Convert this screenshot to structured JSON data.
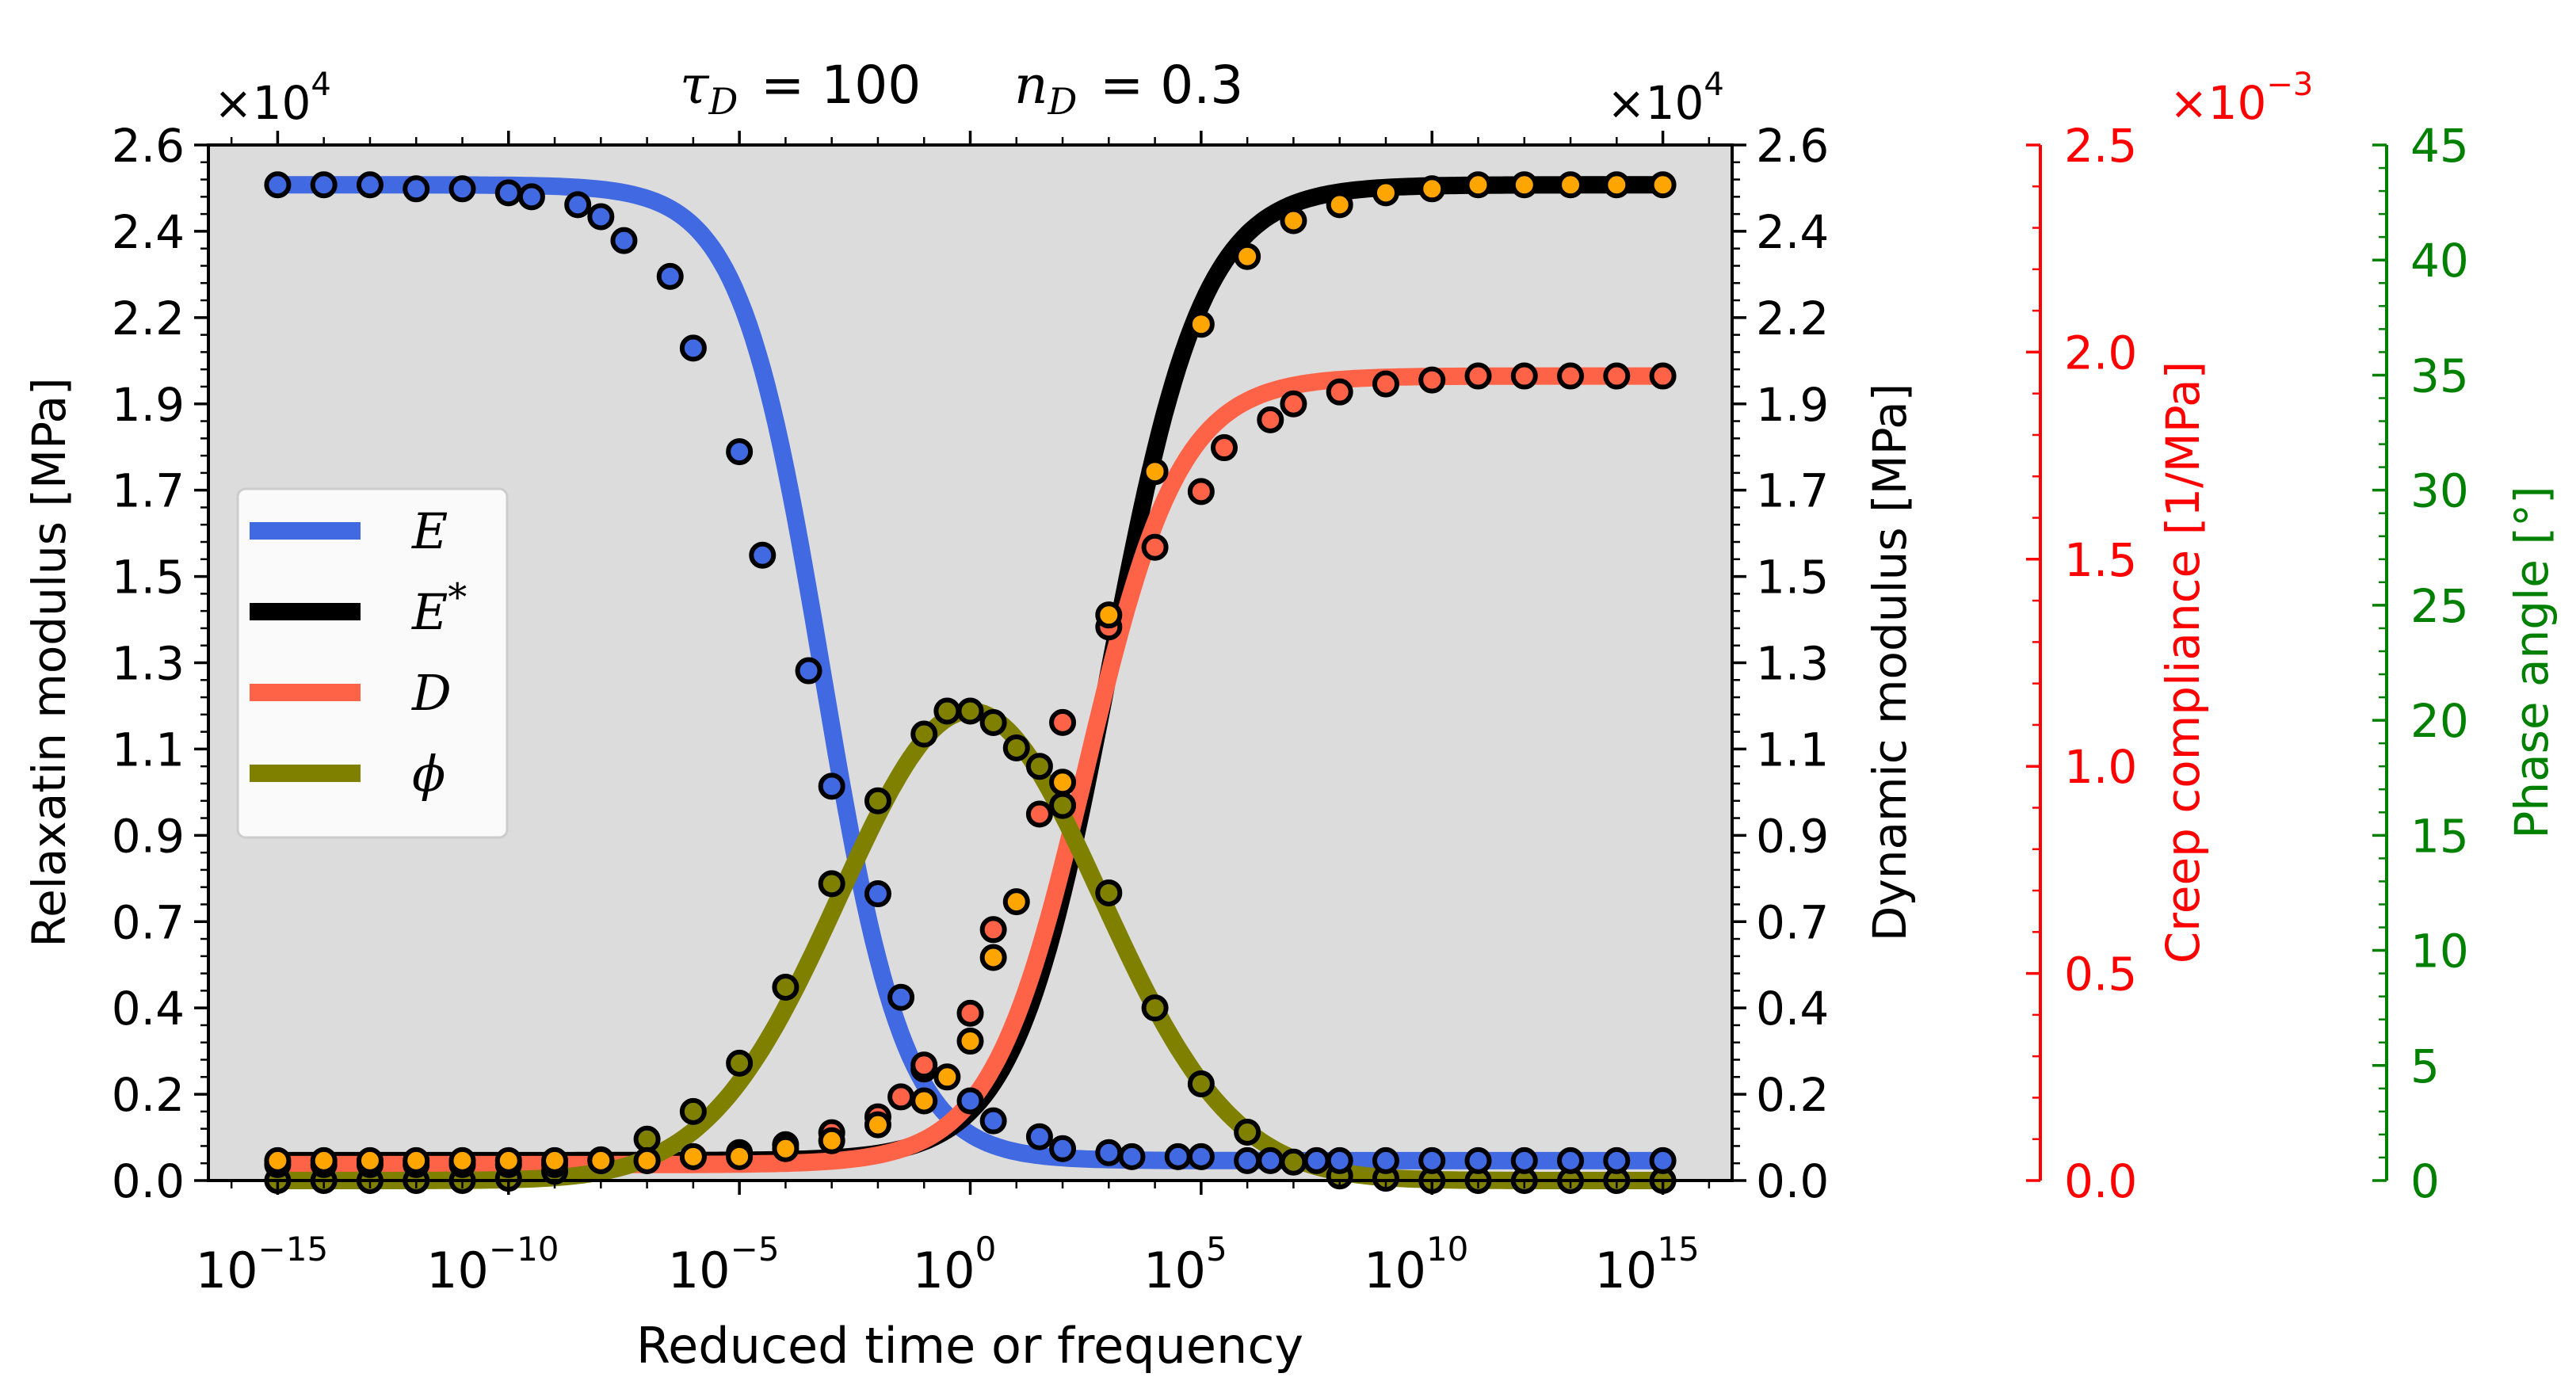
{
  "chart_data": {
    "type": "line",
    "title": "τ_D = 100    n_D = 0.3",
    "title_parts": {
      "tau_symbol": "τ",
      "tau_sub": "D",
      "tau_value": "= 100",
      "n_symbol": "n",
      "n_sub": "D",
      "n_value": "= 0.3"
    },
    "xlabel": "Reduced time or frequency",
    "x_scale": "log",
    "x_ticks": [
      {
        "exp": -15,
        "base": "10",
        "sup": "−15"
      },
      {
        "exp": -10,
        "base": "10",
        "sup": "−10"
      },
      {
        "exp": -5,
        "base": "10",
        "sup": "−5"
      },
      {
        "exp": 0,
        "base": "10",
        "sup": "0"
      },
      {
        "exp": 5,
        "base": "10",
        "sup": "5"
      },
      {
        "exp": 10,
        "base": "10",
        "sup": "10"
      },
      {
        "exp": 15,
        "base": "10",
        "sup": "15"
      }
    ],
    "xlim_exp": [
      -16.5,
      16.5
    ],
    "axes": {
      "left": {
        "label": "Relaxatin modulus [MPa]",
        "ylim": [
          0,
          2.6
        ],
        "ticks": [
          "0.0",
          "0.2",
          "0.4",
          "0.7",
          "0.9",
          "1.1",
          "1.3",
          "1.5",
          "1.7",
          "1.9",
          "2.2",
          "2.4",
          "2.6"
        ],
        "multiplier_base": "×10",
        "multiplier_exp": "4",
        "color": "#000000"
      },
      "right": {
        "label": "Dynamic modulus [MPa]",
        "ylim": [
          0,
          2.6
        ],
        "ticks": [
          "0.0",
          "0.2",
          "0.4",
          "0.7",
          "0.9",
          "1.1",
          "1.3",
          "1.5",
          "1.7",
          "1.9",
          "2.2",
          "2.4",
          "2.6"
        ],
        "multiplier_base": "×10",
        "multiplier_exp": "4",
        "color": "#000000"
      },
      "creep": {
        "label": "Creep compliance [1/MPa]",
        "ylim": [
          0,
          2.5
        ],
        "ticks": [
          "0.0",
          "0.5",
          "1.0",
          "1.5",
          "2.0",
          "2.5"
        ],
        "multiplier_base": "×10",
        "multiplier_exp": "−3",
        "color": "#ff0000"
      },
      "phase": {
        "label": "Phase angle [°]",
        "ylim": [
          0,
          45
        ],
        "ticks": [
          "0",
          "5",
          "10",
          "15",
          "20",
          "25",
          "30",
          "35",
          "40",
          "45"
        ],
        "color": "#008000"
      }
    },
    "legend": {
      "placement": "center-left",
      "entries": [
        {
          "symbol": "E",
          "sup": "",
          "color": "#4169e1"
        },
        {
          "symbol": "E",
          "sup": "*",
          "color": "#000000"
        },
        {
          "symbol": "D",
          "sup": "",
          "color": "#ff6347"
        },
        {
          "symbol": "ϕ",
          "sup": "",
          "color": "#808000"
        }
      ]
    },
    "model": {
      "E_glassy": 2.5,
      "E_equilibrium": 0.05,
      "D_glassy_left_units": 0.04,
      "D_equilibrium_left_units": 2.02,
      "tau_D": 100,
      "n_D": 0.3
    },
    "series": [
      {
        "name": "E",
        "axis": "left",
        "color": "#4169e1",
        "marker_face": "#4169e1",
        "values": [
          {
            "x_exp": -15,
            "y": 2.5
          },
          {
            "x_exp": -14,
            "y": 2.5
          },
          {
            "x_exp": -13,
            "y": 2.5
          },
          {
            "x_exp": -12,
            "y": 2.49
          },
          {
            "x_exp": -11,
            "y": 2.49
          },
          {
            "x_exp": -10,
            "y": 2.48
          },
          {
            "x_exp": -9.5,
            "y": 2.47
          },
          {
            "x_exp": -8.5,
            "y": 2.45
          },
          {
            "x_exp": -8,
            "y": 2.42
          },
          {
            "x_exp": -7.5,
            "y": 2.36
          },
          {
            "x_exp": -6.5,
            "y": 2.27
          },
          {
            "x_exp": -6,
            "y": 2.09
          },
          {
            "x_exp": -5,
            "y": 1.83
          },
          {
            "x_exp": -4.5,
            "y": 1.57
          },
          {
            "x_exp": -3.5,
            "y": 1.28
          },
          {
            "x_exp": -3,
            "y": 0.99
          },
          {
            "x_exp": -2,
            "y": 0.72
          },
          {
            "x_exp": -1.5,
            "y": 0.46
          },
          {
            "x_exp": -1,
            "y": 0.28
          },
          {
            "x_exp": 0,
            "y": 0.2
          },
          {
            "x_exp": 0.5,
            "y": 0.15
          },
          {
            "x_exp": 1.5,
            "y": 0.11
          },
          {
            "x_exp": 2,
            "y": 0.08
          },
          {
            "x_exp": 3,
            "y": 0.07
          },
          {
            "x_exp": 3.5,
            "y": 0.06
          },
          {
            "x_exp": 4.5,
            "y": 0.06
          },
          {
            "x_exp": 5,
            "y": 0.06
          },
          {
            "x_exp": 6,
            "y": 0.05
          },
          {
            "x_exp": 6.5,
            "y": 0.05
          },
          {
            "x_exp": 7.5,
            "y": 0.05
          },
          {
            "x_exp": 8,
            "y": 0.05
          },
          {
            "x_exp": 9,
            "y": 0.05
          },
          {
            "x_exp": 10,
            "y": 0.05
          },
          {
            "x_exp": 11,
            "y": 0.05
          },
          {
            "x_exp": 12,
            "y": 0.05
          },
          {
            "x_exp": 13,
            "y": 0.05
          },
          {
            "x_exp": 14,
            "y": 0.05
          },
          {
            "x_exp": 15,
            "y": 0.05
          }
        ]
      },
      {
        "name": "E*",
        "axis": "right",
        "color": "#000000",
        "marker_face": "#ffa500",
        "values": [
          {
            "x_exp": -15,
            "y": 0.05
          },
          {
            "x_exp": -14,
            "y": 0.05
          },
          {
            "x_exp": -13,
            "y": 0.05
          },
          {
            "x_exp": -12,
            "y": 0.05
          },
          {
            "x_exp": -11,
            "y": 0.05
          },
          {
            "x_exp": -10,
            "y": 0.05
          },
          {
            "x_exp": -9,
            "y": 0.05
          },
          {
            "x_exp": -8,
            "y": 0.05
          },
          {
            "x_exp": -7,
            "y": 0.05
          },
          {
            "x_exp": -6,
            "y": 0.06
          },
          {
            "x_exp": -5,
            "y": 0.06
          },
          {
            "x_exp": -4,
            "y": 0.08
          },
          {
            "x_exp": -3,
            "y": 0.1
          },
          {
            "x_exp": -2,
            "y": 0.14
          },
          {
            "x_exp": -1,
            "y": 0.2
          },
          {
            "x_exp": -0.5,
            "y": 0.26
          },
          {
            "x_exp": 0,
            "y": 0.35
          },
          {
            "x_exp": 0.5,
            "y": 0.56
          },
          {
            "x_exp": 1,
            "y": 0.7
          },
          {
            "x_exp": 2,
            "y": 1.0
          },
          {
            "x_exp": 3,
            "y": 1.42
          },
          {
            "x_exp": 4,
            "y": 1.78
          },
          {
            "x_exp": 5,
            "y": 2.15
          },
          {
            "x_exp": 6,
            "y": 2.32
          },
          {
            "x_exp": 7,
            "y": 2.41
          },
          {
            "x_exp": 8,
            "y": 2.45
          },
          {
            "x_exp": 9,
            "y": 2.48
          },
          {
            "x_exp": 10,
            "y": 2.49
          },
          {
            "x_exp": 11,
            "y": 2.5
          },
          {
            "x_exp": 12,
            "y": 2.5
          },
          {
            "x_exp": 13,
            "y": 2.5
          },
          {
            "x_exp": 14,
            "y": 2.5
          },
          {
            "x_exp": 15,
            "y": 2.5
          }
        ]
      },
      {
        "name": "D",
        "axis": "left",
        "color": "#ff6347",
        "marker_face": "#ff6347",
        "values": [
          {
            "x_exp": -15,
            "y": 0.04
          },
          {
            "x_exp": -14,
            "y": 0.04
          },
          {
            "x_exp": -13,
            "y": 0.04
          },
          {
            "x_exp": -12,
            "y": 0.04
          },
          {
            "x_exp": -11,
            "y": 0.04
          },
          {
            "x_exp": -10,
            "y": 0.04
          },
          {
            "x_exp": -9,
            "y": 0.04
          },
          {
            "x_exp": -8,
            "y": 0.05
          },
          {
            "x_exp": -7,
            "y": 0.05
          },
          {
            "x_exp": -6,
            "y": 0.06
          },
          {
            "x_exp": -5,
            "y": 0.07
          },
          {
            "x_exp": -4,
            "y": 0.09
          },
          {
            "x_exp": -3,
            "y": 0.12
          },
          {
            "x_exp": -2,
            "y": 0.16
          },
          {
            "x_exp": -1.5,
            "y": 0.21
          },
          {
            "x_exp": -1,
            "y": 0.29
          },
          {
            "x_exp": 0,
            "y": 0.42
          },
          {
            "x_exp": 0.5,
            "y": 0.63
          },
          {
            "x_exp": 1.5,
            "y": 0.92
          },
          {
            "x_exp": 2,
            "y": 1.15
          },
          {
            "x_exp": 3,
            "y": 1.39
          },
          {
            "x_exp": 4,
            "y": 1.59
          },
          {
            "x_exp": 5,
            "y": 1.73
          },
          {
            "x_exp": 5.5,
            "y": 1.84
          },
          {
            "x_exp": 6.5,
            "y": 1.91
          },
          {
            "x_exp": 7,
            "y": 1.95
          },
          {
            "x_exp": 8,
            "y": 1.98
          },
          {
            "x_exp": 9,
            "y": 2.0
          },
          {
            "x_exp": 10,
            "y": 2.01
          },
          {
            "x_exp": 11,
            "y": 2.02
          },
          {
            "x_exp": 12,
            "y": 2.02
          },
          {
            "x_exp": 13,
            "y": 2.02
          },
          {
            "x_exp": 14,
            "y": 2.02
          },
          {
            "x_exp": 15,
            "y": 2.02
          }
        ]
      },
      {
        "name": "ϕ",
        "axis": "phase",
        "color": "#808000",
        "marker_face": "#808000",
        "values": [
          {
            "x_exp": -15,
            "y": 0.0
          },
          {
            "x_exp": -14,
            "y": 0.0
          },
          {
            "x_exp": -13,
            "y": 0.0
          },
          {
            "x_exp": -12,
            "y": 0.0
          },
          {
            "x_exp": -11,
            "y": 0.0
          },
          {
            "x_exp": -10,
            "y": 0.1
          },
          {
            "x_exp": -9,
            "y": 0.4
          },
          {
            "x_exp": -8,
            "y": 0.9
          },
          {
            "x_exp": -7,
            "y": 1.8
          },
          {
            "x_exp": -6,
            "y": 3.0
          },
          {
            "x_exp": -5,
            "y": 5.1
          },
          {
            "x_exp": -4,
            "y": 8.4
          },
          {
            "x_exp": -3,
            "y": 12.9
          },
          {
            "x_exp": -2,
            "y": 16.5
          },
          {
            "x_exp": -1,
            "y": 19.4
          },
          {
            "x_exp": -0.5,
            "y": 20.4
          },
          {
            "x_exp": 0,
            "y": 20.4
          },
          {
            "x_exp": 0.5,
            "y": 19.9
          },
          {
            "x_exp": 1,
            "y": 18.8
          },
          {
            "x_exp": 1.5,
            "y": 18.0
          },
          {
            "x_exp": 2,
            "y": 16.3
          },
          {
            "x_exp": 3,
            "y": 12.5
          },
          {
            "x_exp": 4,
            "y": 7.5
          },
          {
            "x_exp": 5,
            "y": 4.2
          },
          {
            "x_exp": 6,
            "y": 2.1
          },
          {
            "x_exp": 7,
            "y": 0.8
          },
          {
            "x_exp": 8,
            "y": 0.2
          },
          {
            "x_exp": 9,
            "y": 0.1
          },
          {
            "x_exp": 10,
            "y": 0.0
          },
          {
            "x_exp": 11,
            "y": 0.0
          },
          {
            "x_exp": 12,
            "y": 0.0
          },
          {
            "x_exp": 13,
            "y": 0.0
          },
          {
            "x_exp": 14,
            "y": 0.0
          },
          {
            "x_exp": 15,
            "y": 0.0
          }
        ]
      }
    ]
  }
}
